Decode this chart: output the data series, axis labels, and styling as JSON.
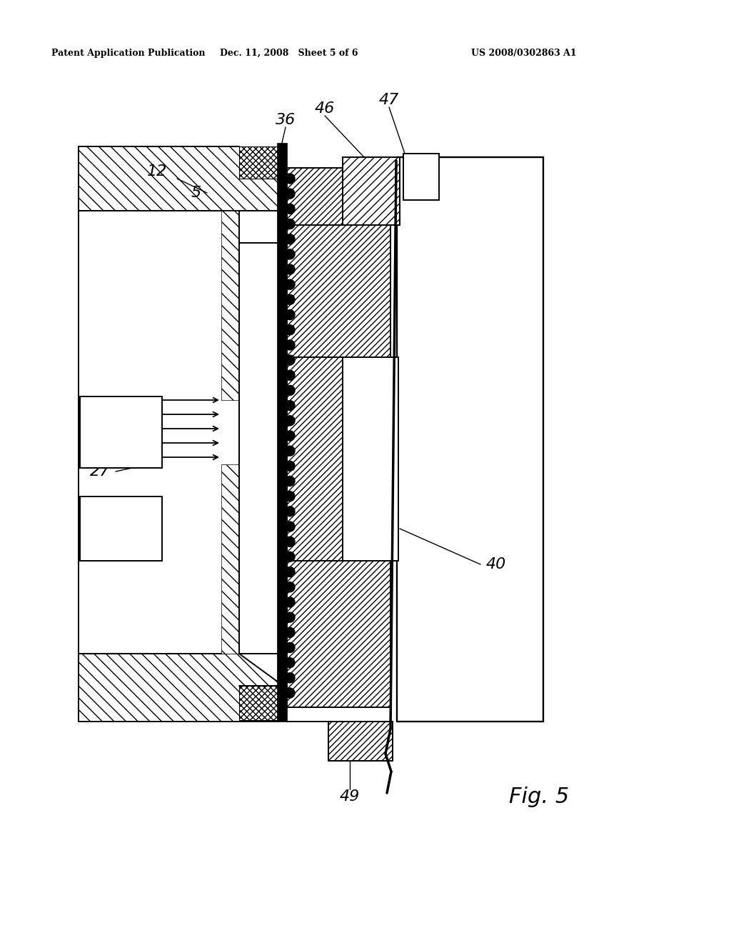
{
  "background": "#ffffff",
  "header_left": "Patent Application Publication",
  "header_mid": "Dec. 11, 2008   Sheet 5 of 6",
  "header_right": "US 2008/0302863 A1",
  "fig_label": "Fig. 5",
  "lw": 1.4,
  "lw_thick": 2.5
}
